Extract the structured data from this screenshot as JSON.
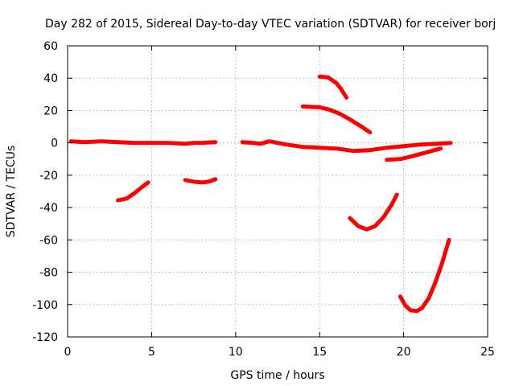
{
  "chart_data": {
    "type": "line",
    "title": "Day 282 of 2015, Sidereal Day-to-day VTEC variation (SDTVAR) for receiver borj",
    "xlabel": "GPS time / hours",
    "ylabel": "SDTVAR / TECUs",
    "xlim": [
      0,
      25
    ],
    "ylim": [
      -120,
      60
    ],
    "x_ticks": [
      0,
      5,
      10,
      15,
      20,
      25
    ],
    "y_ticks": [
      -120,
      -100,
      -80,
      -60,
      -40,
      -20,
      0,
      20,
      40,
      60
    ],
    "grid": true,
    "legend": "none",
    "color": "#ff0000",
    "series": [
      {
        "x": [
          0.2,
          1,
          2,
          3,
          4,
          5,
          6,
          7,
          7.5,
          8,
          8.8
        ],
        "y": [
          1,
          0.5,
          1,
          0.5,
          0,
          0,
          0,
          -0.5,
          0,
          0,
          0.5
        ]
      },
      {
        "x": [
          3.0,
          3.5,
          4.0,
          4.4,
          4.8
        ],
        "y": [
          -35.5,
          -34.5,
          -31,
          -27.5,
          -24.5
        ]
      },
      {
        "x": [
          7.0,
          7.5,
          8.0,
          8.4,
          8.8
        ],
        "y": [
          -23,
          -24,
          -24.5,
          -24,
          -22.5
        ]
      },
      {
        "x": [
          10.4,
          11,
          11.5,
          12,
          13,
          14,
          15,
          16,
          17,
          18,
          19,
          20,
          21,
          22,
          22.8
        ],
        "y": [
          0.5,
          0,
          -0.5,
          1,
          -1,
          -2.5,
          -3,
          -3.5,
          -5,
          -4.5,
          -3,
          -2,
          -1,
          -0.5,
          0
        ]
      },
      {
        "x": [
          15.0,
          15.5,
          16.0,
          16.3,
          16.6
        ],
        "y": [
          41,
          40.5,
          37,
          33,
          28
        ]
      },
      {
        "x": [
          14.0,
          15.0,
          15.6,
          16.2,
          16.8,
          17.5,
          18.0
        ],
        "y": [
          22.5,
          22,
          20.5,
          18,
          14.5,
          10,
          6.5
        ]
      },
      {
        "x": [
          16.8,
          17.3,
          17.8,
          18.3,
          18.8,
          19.3,
          19.6
        ],
        "y": [
          -46.5,
          -51.5,
          -53.5,
          -51.5,
          -46,
          -38,
          -32
        ]
      },
      {
        "x": [
          19.0,
          19.8,
          20.6,
          21.5,
          22.2
        ],
        "y": [
          -10.5,
          -10,
          -8,
          -5.5,
          -3.5
        ]
      },
      {
        "x": [
          19.8,
          20.1,
          20.4,
          20.8,
          21.1,
          21.5,
          21.9,
          22.3,
          22.7
        ],
        "y": [
          -95,
          -100.5,
          -103.5,
          -104,
          -102,
          -96,
          -86,
          -74,
          -60
        ]
      }
    ]
  }
}
